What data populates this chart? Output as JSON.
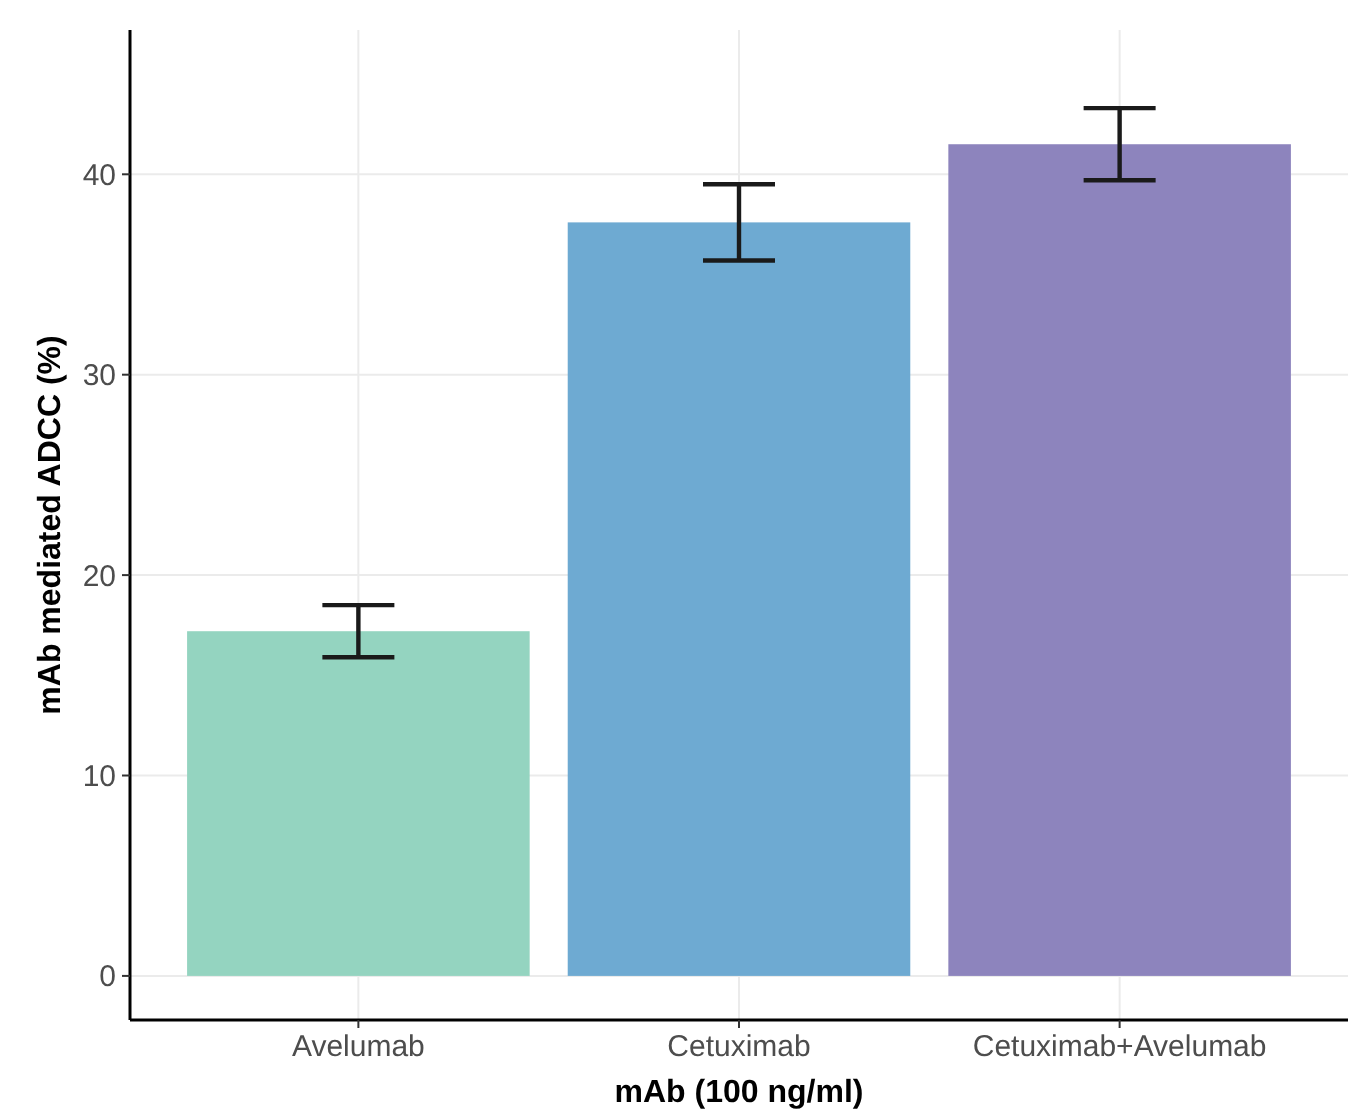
{
  "chart_data": {
    "type": "bar",
    "xlabel": "mAb (100 ng/ml)",
    "ylabel": "mAb mediated ADCC (%)",
    "categories": [
      "Avelumab",
      "Cetuximab",
      "Cetuximab+Avelumab"
    ],
    "values": [
      17.2,
      37.6,
      41.5
    ],
    "colors": [
      "#94d4c0",
      "#6eaad2",
      "#8d84bd"
    ],
    "errors": [
      [
        15.9,
        18.5
      ],
      [
        35.7,
        39.5
      ],
      [
        39.7,
        43.3
      ]
    ],
    "ylim": [
      -2.2,
      47.2
    ],
    "yticks": [
      0,
      10,
      20,
      30,
      40
    ],
    "grid": true
  }
}
